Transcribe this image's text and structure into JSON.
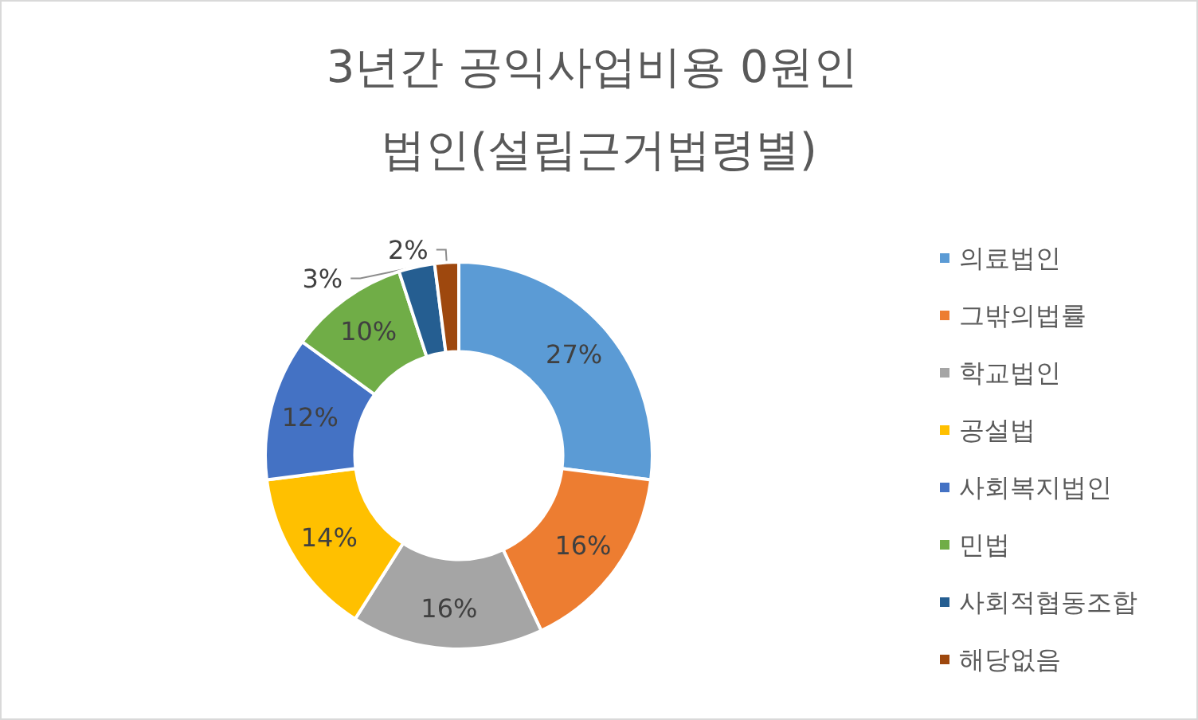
{
  "chart_data": {
    "type": "donut",
    "title": "3년간 공익사업비용 0원인 법인(설립근거법령별)",
    "categories": [
      "의료법인",
      "그밖의법률",
      "학교법인",
      "공설법",
      "사회복지법인",
      "민법",
      "사회적협동조합",
      "해당없음"
    ],
    "values": [
      27,
      16,
      16,
      14,
      12,
      10,
      3,
      2
    ],
    "value_labels": [
      "27%",
      "16%",
      "16%",
      "14%",
      "12%",
      "10%",
      "3%",
      "2%"
    ],
    "colors": [
      "#5b9bd5",
      "#ed7d31",
      "#a5a5a5",
      "#ffc000",
      "#4472c4",
      "#70ad47",
      "#255e91",
      "#9e480e"
    ],
    "legend": "right"
  }
}
